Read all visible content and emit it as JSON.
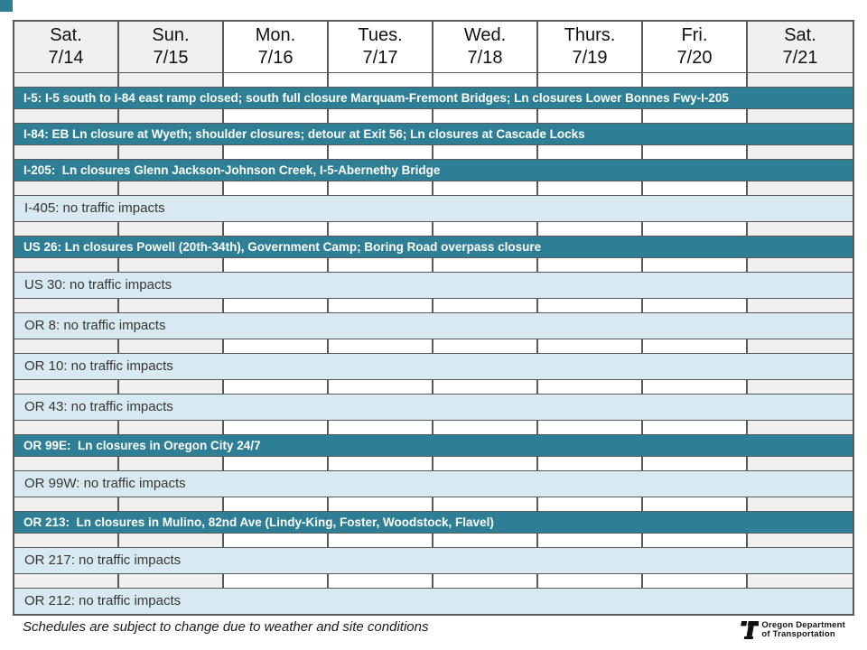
{
  "header": {
    "days": [
      {
        "label": "Sat.",
        "date": "7/14",
        "weekend": true
      },
      {
        "label": "Sun.",
        "date": "7/15",
        "weekend": true
      },
      {
        "label": "Mon.",
        "date": "7/16",
        "weekend": false
      },
      {
        "label": "Tues.",
        "date": "7/17",
        "weekend": false
      },
      {
        "label": "Wed.",
        "date": "7/18",
        "weekend": false
      },
      {
        "label": "Thurs.",
        "date": "7/19",
        "weekend": false
      },
      {
        "label": "Fri.",
        "date": "7/20",
        "weekend": false
      },
      {
        "label": "Sat.",
        "date": "7/21",
        "weekend": true
      }
    ]
  },
  "rows": [
    {
      "route": "I-5",
      "type": "closure",
      "label": "I-5: I-5 south to I-84 east ramp closed; south full closure Marquam-Fremont Bridges; Ln closures Lower Bonnes Fwy-I-205"
    },
    {
      "route": "I-84",
      "type": "closure",
      "label": "I-84: EB Ln closure at Wyeth; shoulder closures; detour at Exit 56; Ln closures at Cascade Locks"
    },
    {
      "route": "I-205",
      "type": "closure",
      "label": "I-205:  Ln closures Glenn Jackson-Johnson Creek, I-5-Abernethy Bridge"
    },
    {
      "route": "I-405",
      "type": "no-impact",
      "label": "I-405: no traffic impacts"
    },
    {
      "route": "US 26",
      "type": "closure",
      "label": "US 26: Ln closures Powell (20th-34th), Government Camp; Boring Road overpass closure"
    },
    {
      "route": "US 30",
      "type": "no-impact",
      "label": "US 30: no traffic impacts"
    },
    {
      "route": "OR 8",
      "type": "no-impact",
      "label": "OR 8: no traffic impacts"
    },
    {
      "route": "OR 10",
      "type": "no-impact",
      "label": "OR 10: no traffic impacts"
    },
    {
      "route": "OR 43",
      "type": "no-impact",
      "label": "OR 43: no traffic impacts"
    },
    {
      "route": "OR 99E",
      "type": "closure",
      "label": "OR 99E:  Ln closures in Oregon City 24/7"
    },
    {
      "route": "OR 99W",
      "type": "no-impact",
      "label": "OR 99W: no traffic impacts"
    },
    {
      "route": "OR 213",
      "type": "closure",
      "label": "OR 213:  Ln closures in Mulino, 82nd Ave (Lindy-King, Foster, Woodstock, Flavel)"
    },
    {
      "route": "OR 217",
      "type": "no-impact",
      "label": "OR 217: no traffic impacts"
    },
    {
      "route": "OR 212",
      "type": "no-impact",
      "label": "OR 212: no traffic impacts"
    }
  ],
  "footer": {
    "note": "Schedules are subject to change due to weather and site conditions",
    "logo_line1": "Oregon Department",
    "logo_line2": "of Transportation"
  },
  "colors": {
    "closure_bar": "#2E7F96",
    "no_impact_bar": "#D9E9F1",
    "weekend_cell": "#F1F0EE",
    "border": "#595959"
  }
}
